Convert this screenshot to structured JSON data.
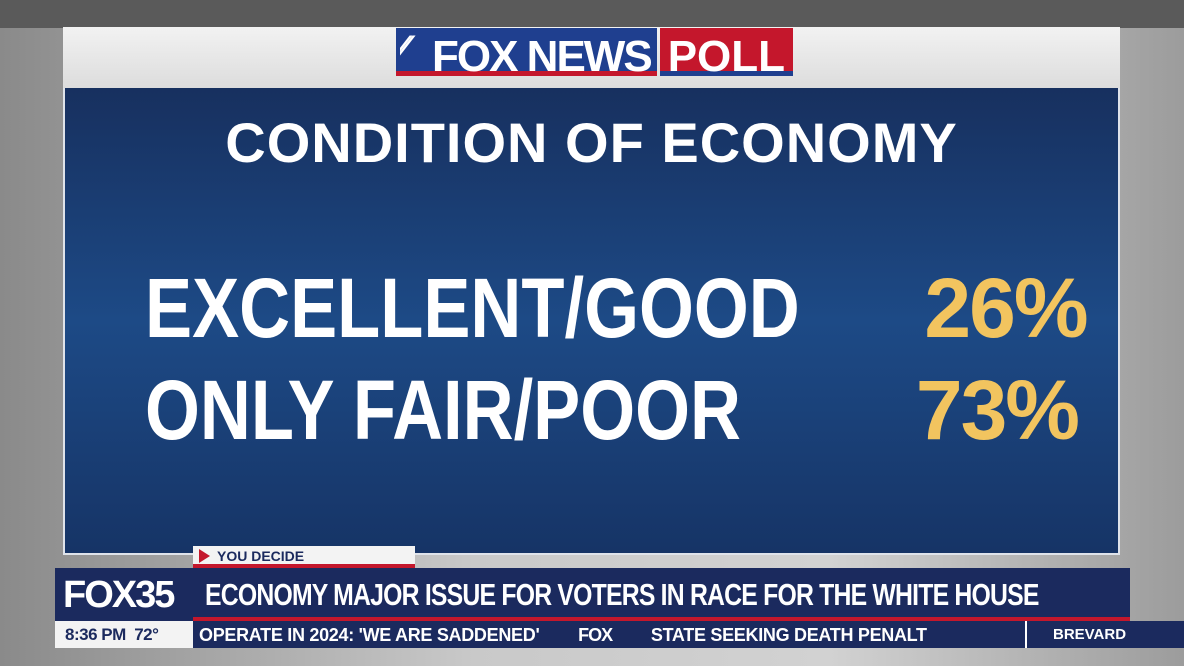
{
  "logo": {
    "fox_news": "FOX NEWS",
    "poll": "POLL"
  },
  "graphic": {
    "title": "CONDITION OF ECONOMY",
    "rows": [
      {
        "label": "EXCELLENT/GOOD",
        "value": "26%"
      },
      {
        "label": "ONLY FAIR/POOR",
        "value": "73%"
      }
    ]
  },
  "lower_third": {
    "tag": "YOU DECIDE",
    "station": "FOX35",
    "headline": "ECONOMY MAJOR ISSUE FOR VOTERS IN RACE FOR THE WHITE HOUSE",
    "time": "8:36 PM",
    "temp": "72°",
    "ticker": [
      "OPERATE IN 2024: 'WE ARE SADDENED'",
      "FOX",
      "STATE SEEKING DEATH PENALT"
    ],
    "region": "BREVARD"
  },
  "colors": {
    "navy": "#1b2a5e",
    "red": "#c4172c",
    "gold": "#f2c45f",
    "panel_blue": "#1d4a86"
  }
}
